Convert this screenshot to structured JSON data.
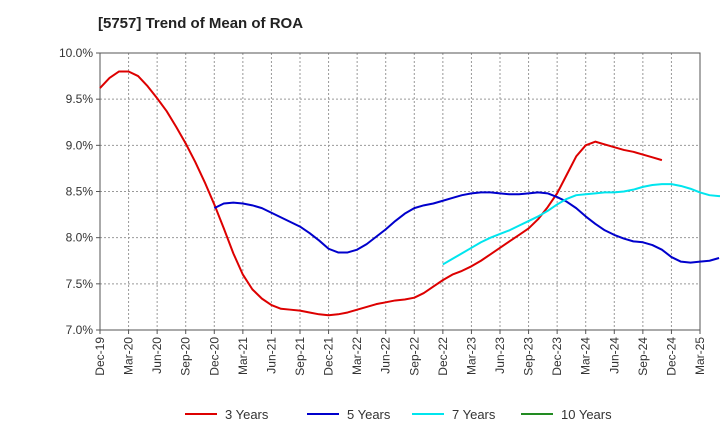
{
  "chart_data": {
    "type": "line",
    "title": "[5757]  Trend of Mean of ROA",
    "xlabel": "",
    "ylabel": "",
    "x_ticks": [
      "Dec-19",
      "Mar-20",
      "Jun-20",
      "Sep-20",
      "Dec-20",
      "Mar-21",
      "Jun-21",
      "Sep-21",
      "Dec-21",
      "Mar-22",
      "Jun-22",
      "Sep-22",
      "Dec-22",
      "Mar-23",
      "Jun-23",
      "Sep-23",
      "Dec-23",
      "Mar-24",
      "Jun-24",
      "Sep-24",
      "Dec-24",
      "Mar-25"
    ],
    "y_ticks": [
      "7.0%",
      "7.5%",
      "8.0%",
      "8.5%",
      "9.0%",
      "9.5%",
      "10.0%"
    ],
    "ylim": [
      7.0,
      10.0
    ],
    "grid": true,
    "legend_position": "bottom",
    "series": [
      {
        "name": "3 Years",
        "color": "#dd0000",
        "values": [
          [
            0,
            9.62
          ],
          [
            1,
            9.73
          ],
          [
            2,
            9.8
          ],
          [
            3,
            9.8
          ],
          [
            4,
            9.75
          ],
          [
            5,
            9.64
          ],
          [
            6,
            9.51
          ],
          [
            7,
            9.37
          ],
          [
            8,
            9.2
          ],
          [
            9,
            9.02
          ],
          [
            10,
            8.82
          ],
          [
            11,
            8.6
          ],
          [
            12,
            8.36
          ],
          [
            13,
            8.1
          ],
          [
            14,
            7.83
          ],
          [
            15,
            7.6
          ],
          [
            16,
            7.44
          ],
          [
            17,
            7.34
          ],
          [
            18,
            7.27
          ],
          [
            19,
            7.23
          ],
          [
            20,
            7.22
          ],
          [
            21,
            7.21
          ],
          [
            22,
            7.19
          ],
          [
            23,
            7.17
          ],
          [
            24,
            7.16
          ],
          [
            25,
            7.17
          ],
          [
            26,
            7.19
          ],
          [
            27,
            7.22
          ],
          [
            28,
            7.25
          ],
          [
            29,
            7.28
          ],
          [
            30,
            7.3
          ],
          [
            31,
            7.32
          ],
          [
            32,
            7.33
          ],
          [
            33,
            7.35
          ],
          [
            34,
            7.4
          ],
          [
            35,
            7.47
          ],
          [
            36,
            7.54
          ],
          [
            37,
            7.6
          ],
          [
            38,
            7.64
          ],
          [
            39,
            7.69
          ],
          [
            40,
            7.75
          ],
          [
            41,
            7.82
          ],
          [
            42,
            7.89
          ],
          [
            43,
            7.96
          ],
          [
            44,
            8.03
          ],
          [
            45,
            8.1
          ],
          [
            46,
            8.2
          ],
          [
            47,
            8.33
          ],
          [
            48,
            8.48
          ],
          [
            49,
            8.68
          ],
          [
            50,
            8.88
          ],
          [
            51,
            9.0
          ],
          [
            52,
            9.04
          ],
          [
            53,
            9.01
          ],
          [
            54,
            8.98
          ],
          [
            55,
            8.95
          ],
          [
            56,
            8.93
          ],
          [
            57,
            8.9
          ],
          [
            58,
            8.87
          ],
          [
            59,
            8.84
          ]
        ]
      },
      {
        "name": "5 Years",
        "color": "#0000cc",
        "values": [
          [
            12,
            8.32
          ],
          [
            13,
            8.37
          ],
          [
            14,
            8.38
          ],
          [
            15,
            8.37
          ],
          [
            16,
            8.35
          ],
          [
            17,
            8.32
          ],
          [
            18,
            8.27
          ],
          [
            19,
            8.22
          ],
          [
            20,
            8.17
          ],
          [
            21,
            8.12
          ],
          [
            22,
            8.05
          ],
          [
            23,
            7.97
          ],
          [
            24,
            7.88
          ],
          [
            25,
            7.84
          ],
          [
            26,
            7.84
          ],
          [
            27,
            7.87
          ],
          [
            28,
            7.93
          ],
          [
            29,
            8.01
          ],
          [
            30,
            8.09
          ],
          [
            31,
            8.18
          ],
          [
            32,
            8.26
          ],
          [
            33,
            8.32
          ],
          [
            34,
            8.35
          ],
          [
            35,
            8.37
          ],
          [
            36,
            8.4
          ],
          [
            37,
            8.43
          ],
          [
            38,
            8.46
          ],
          [
            39,
            8.48
          ],
          [
            40,
            8.49
          ],
          [
            41,
            8.49
          ],
          [
            42,
            8.48
          ],
          [
            43,
            8.47
          ],
          [
            44,
            8.47
          ],
          [
            45,
            8.48
          ],
          [
            46,
            8.49
          ],
          [
            47,
            8.48
          ],
          [
            48,
            8.44
          ],
          [
            49,
            8.39
          ],
          [
            50,
            8.32
          ],
          [
            51,
            8.23
          ],
          [
            52,
            8.15
          ],
          [
            53,
            8.08
          ],
          [
            54,
            8.03
          ],
          [
            55,
            7.99
          ],
          [
            56,
            7.96
          ],
          [
            57,
            7.95
          ],
          [
            58,
            7.92
          ],
          [
            59,
            7.87
          ],
          [
            60,
            7.79
          ],
          [
            61,
            7.74
          ],
          [
            62,
            7.73
          ],
          [
            63,
            7.74
          ],
          [
            64,
            7.75
          ],
          [
            65,
            7.78
          ]
        ]
      },
      {
        "name": "7 Years",
        "color": "#00e5ee",
        "values": [
          [
            36,
            7.71
          ],
          [
            37,
            7.77
          ],
          [
            38,
            7.83
          ],
          [
            39,
            7.89
          ],
          [
            40,
            7.95
          ],
          [
            41,
            8.0
          ],
          [
            42,
            8.04
          ],
          [
            43,
            8.08
          ],
          [
            44,
            8.13
          ],
          [
            45,
            8.18
          ],
          [
            46,
            8.23
          ],
          [
            47,
            8.29
          ],
          [
            48,
            8.36
          ],
          [
            49,
            8.42
          ],
          [
            50,
            8.46
          ],
          [
            51,
            8.47
          ],
          [
            52,
            8.48
          ],
          [
            53,
            8.49
          ],
          [
            54,
            8.49
          ],
          [
            55,
            8.5
          ],
          [
            56,
            8.52
          ],
          [
            57,
            8.55
          ],
          [
            58,
            8.57
          ],
          [
            59,
            8.58
          ],
          [
            60,
            8.58
          ],
          [
            61,
            8.56
          ],
          [
            62,
            8.53
          ],
          [
            63,
            8.49
          ],
          [
            64,
            8.46
          ],
          [
            65,
            8.45
          ],
          [
            66,
            8.45
          ],
          [
            67,
            8.44
          ],
          [
            68,
            8.42
          ],
          [
            69,
            8.4
          ]
        ]
      },
      {
        "name": "10 Years",
        "color": "#228b22",
        "values": []
      }
    ]
  }
}
